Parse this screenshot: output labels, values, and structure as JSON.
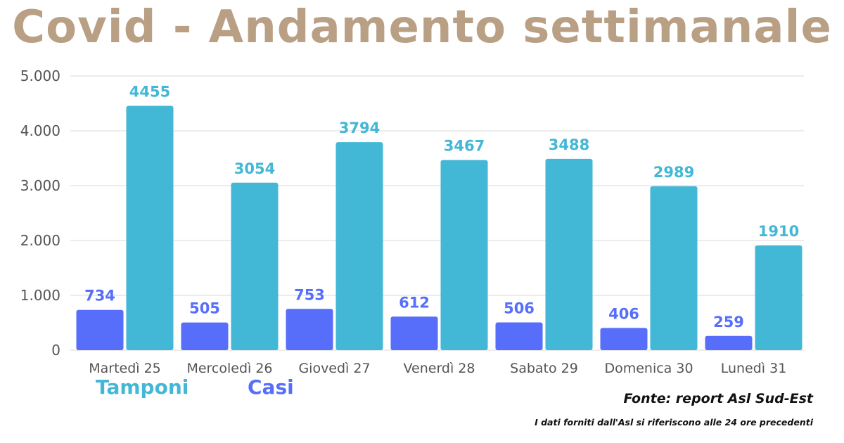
{
  "colors": {
    "title": "#B9A085",
    "tamponi": "#42B7D6",
    "casi": "#566EFA",
    "grid": "#D9D9D9",
    "axis_text": "#555555"
  },
  "title": "Covid - Andamento settimanale",
  "legend": {
    "tamponi": "Tamponi",
    "casi": "Casi"
  },
  "source": "Fonte: report Asl Sud-Est",
  "note": "I dati forniti dall'Asl si riferiscono alle 24 ore precedenti",
  "chart_data": {
    "type": "bar",
    "title": "Covid - Andamento settimanale",
    "xlabel": "",
    "ylabel": "",
    "ylim": [
      0,
      5000
    ],
    "yticks": [
      "0",
      "1.000",
      "2.000",
      "3.000",
      "4.000",
      "5.000"
    ],
    "grid": true,
    "legend_position": "bottom-left",
    "categories": [
      "Martedì 25",
      "Mercoledì 26",
      "Giovedì 27",
      "Venerdì 28",
      "Sabato 29",
      "Domenica 30",
      "Lunedì 31"
    ],
    "series": [
      {
        "name": "Casi",
        "color": "#566EFA",
        "values": [
          734,
          505,
          753,
          612,
          506,
          406,
          259
        ]
      },
      {
        "name": "Tamponi",
        "color": "#42B7D6",
        "values": [
          4455,
          3054,
          3794,
          3467,
          3488,
          2989,
          1910
        ]
      }
    ]
  }
}
